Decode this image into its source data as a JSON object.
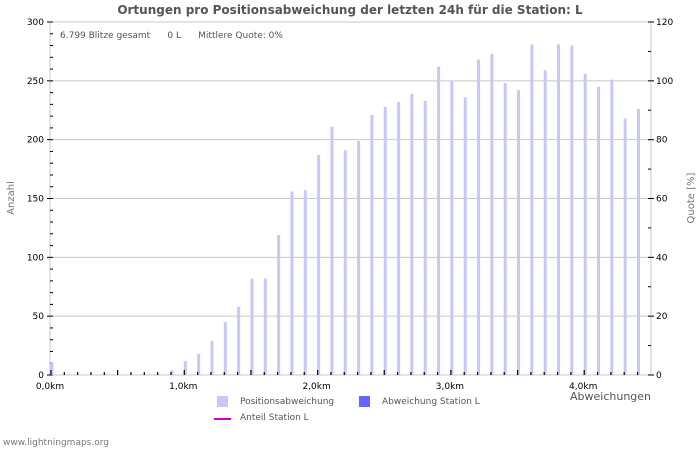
{
  "title": "Ortungen pro Positionsabweichung der letzten 24h für die Station: L",
  "stats": {
    "total": "6.799 Blitze gesamt",
    "station": "0 L",
    "quote": "Mittlere Quote: 0%"
  },
  "footer": "www.lightningmaps.org",
  "legend": {
    "positions": "Positionsabweichung",
    "station_dev": "Abweichung Station L",
    "share": "Anteil Station L"
  },
  "colors": {
    "bars": "#c8c8f8",
    "station_bars": "#6464ff",
    "share_line": "#cc00cc",
    "grid": "#c8c8c8"
  },
  "chart_data": {
    "type": "bar",
    "title": "Ortungen pro Positionsabweichung der letzten 24h für die Station: L",
    "xlabel": "Abweichungen",
    "ylabel": "Anzahl",
    "y2label": "Quote [%]",
    "ylim": [
      0,
      300
    ],
    "y2lim": [
      0,
      120
    ],
    "yticks": [
      0,
      50,
      100,
      150,
      200,
      250,
      300
    ],
    "y2ticks": [
      0,
      20,
      40,
      60,
      80,
      100,
      120
    ],
    "xtick_labels": [
      "0,0km",
      "1,0km",
      "2,0km",
      "3,0km",
      "4,0km"
    ],
    "grid": true,
    "legend_position": "bottom",
    "x": [
      0.0,
      0.1,
      0.2,
      0.3,
      0.4,
      0.5,
      0.6,
      0.7,
      0.8,
      0.9,
      1.0,
      1.1,
      1.2,
      1.3,
      1.4,
      1.5,
      1.6,
      1.7,
      1.8,
      1.9,
      2.0,
      2.1,
      2.2,
      2.3,
      2.4,
      2.5,
      2.6,
      2.7,
      2.8,
      2.9,
      3.0,
      3.1,
      3.2,
      3.3,
      3.4,
      3.5,
      3.6,
      3.7,
      3.8,
      3.9,
      4.0,
      4.1,
      4.2,
      4.3,
      4.4
    ],
    "series": [
      {
        "name": "Positionsabweichung",
        "values": [
          11,
          0,
          0,
          0,
          1,
          0,
          0,
          0,
          1,
          4,
          12,
          18,
          29,
          45,
          58,
          82,
          82,
          119,
          156,
          157,
          187,
          211,
          191,
          199,
          221,
          228,
          232,
          239,
          233,
          262,
          250,
          236,
          268,
          273,
          248,
          242,
          281,
          259,
          281,
          280,
          256,
          245,
          251,
          218,
          226
        ]
      },
      {
        "name": "Abweichung Station L",
        "values": [
          0,
          0,
          0,
          0,
          0,
          0,
          0,
          0,
          0,
          0,
          0,
          0,
          0,
          0,
          0,
          0,
          0,
          0,
          0,
          0,
          0,
          0,
          0,
          0,
          0,
          0,
          0,
          0,
          0,
          0,
          0,
          0,
          0,
          0,
          0,
          0,
          0,
          0,
          0,
          0,
          0,
          0,
          0,
          0,
          0
        ]
      },
      {
        "name": "Anteil Station L",
        "values": []
      }
    ]
  }
}
